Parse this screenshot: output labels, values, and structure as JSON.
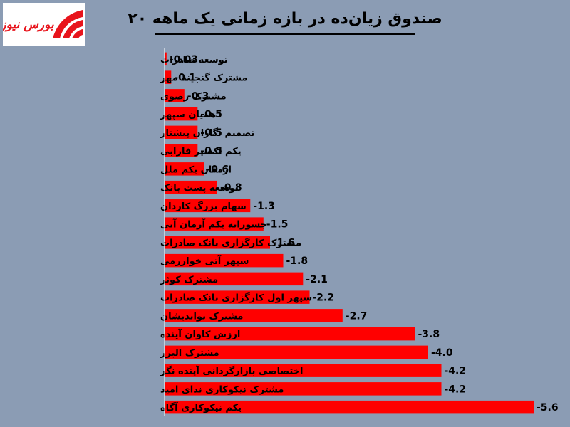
{
  "logo": {
    "text": "بورس نیوز",
    "color": "#e8141c"
  },
  "chart_data": {
    "type": "bar",
    "orientation": "horizontal",
    "title": "۲۰ صندوق زیان‌ده در بازه زمانی یک ماهه",
    "categories": [
      "توسعه صادرات",
      "مشترک گنجینه مهر",
      "مشترک رضوی",
      "همیان سپهر",
      "تصمیم نگاران پیشتاز",
      "یکم اکسیر فارابی",
      "ارمغان یکم ملل",
      "توسعه پست بانک",
      "سهام بزرگ کاردان",
      "جسورانه یکم آرمان آتی",
      "مشترک کارگزاری بانک صادرات",
      "سپهر آتی خوارزمی",
      "مشترک کوثر",
      "سپهر اول کارگزاری بانک صادرات",
      "مشترک نواندیشان",
      "ارزش کاوان آینده",
      "مشترک البرز",
      "اختصاصی بازارگردانی آینده نگر",
      "مشترک نیکوکاری ندای امید",
      "یکم نیکوکاری آگاه"
    ],
    "values": [
      -0.03,
      -0.1,
      -0.3,
      -0.5,
      -0.5,
      -0.5,
      -0.6,
      -0.8,
      -1.3,
      -1.5,
      -1.6,
      -1.8,
      -2.1,
      -2.2,
      -2.7,
      -3.8,
      -4.0,
      -4.2,
      -4.2,
      -5.6
    ],
    "value_labels": [
      "-0.03",
      "-0.1",
      "-0.3",
      "-0.5",
      "-0.5",
      "-0.5",
      "-0.6",
      "-0.8",
      "-1.3",
      "-1.5",
      "-1.6",
      "-1.8",
      "-2.1",
      "-2.2",
      "-2.7",
      "-3.8",
      "-4.0",
      "-4.2",
      "-4.2",
      "-5.6"
    ],
    "xlim": [
      0,
      -5.6
    ],
    "grid": false,
    "colors": {
      "bar": "#ff0000",
      "background": "#8b9cb4",
      "axis": "#ffffff"
    }
  }
}
